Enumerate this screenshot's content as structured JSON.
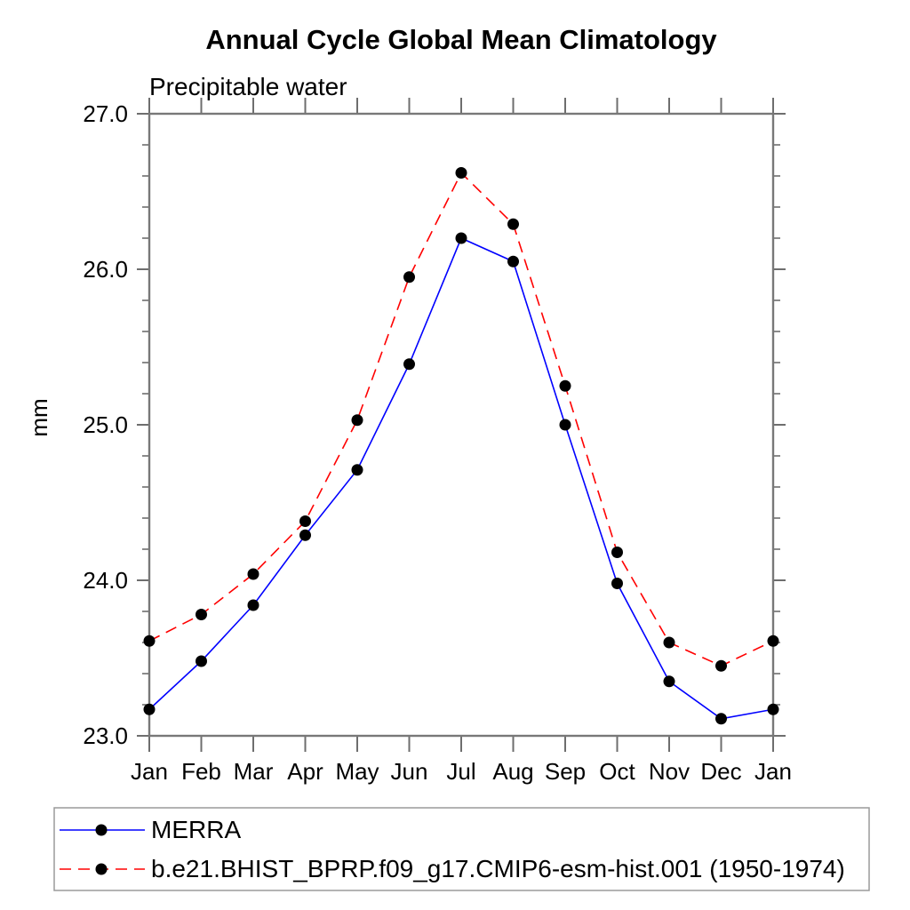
{
  "title": "Annual Cycle Global Mean Climatology",
  "chart_data": {
    "type": "line",
    "title": "Annual Cycle Global Mean Climatology",
    "subtitle": "Precipitable water",
    "xlabel": "",
    "ylabel": "mm",
    "categories": [
      "Jan",
      "Feb",
      "Mar",
      "Apr",
      "May",
      "Jun",
      "Jul",
      "Aug",
      "Sep",
      "Oct",
      "Nov",
      "Dec",
      "Jan"
    ],
    "ylim": [
      23.0,
      27.0
    ],
    "ytick_major_values": [
      23.0,
      24.0,
      25.0,
      26.0,
      27.0
    ],
    "ytick_major_labels": [
      "23.0",
      "24.0",
      "25.0",
      "26.0",
      "27.0"
    ],
    "ytick_minor_step": 0.2,
    "grid": false,
    "legend_position": "bottom-left-box",
    "series": [
      {
        "name": "MERRA",
        "color": "#0000ff",
        "line_style": "solid",
        "marker": "filled-black-circle",
        "values": [
          23.17,
          23.48,
          23.84,
          24.29,
          24.71,
          25.39,
          26.2,
          26.05,
          25.0,
          23.98,
          23.35,
          23.11,
          23.17
        ]
      },
      {
        "name": "b.e21.BHIST_BPRP.f09_g17.CMIP6-esm-hist.001 (1950-1974)",
        "color": "#ff0000",
        "line_style": "dashed",
        "marker": "filled-black-circle",
        "values": [
          23.61,
          23.78,
          24.04,
          24.38,
          25.03,
          25.95,
          26.62,
          26.29,
          25.25,
          24.18,
          23.6,
          23.45,
          23.61
        ]
      }
    ]
  },
  "colors": {
    "axis_frame": "#787878",
    "tick": "#6e6e6e",
    "marker": "#000000",
    "text": "#000000",
    "legend_border": "#9a9a9a",
    "background": "#ffffff"
  }
}
